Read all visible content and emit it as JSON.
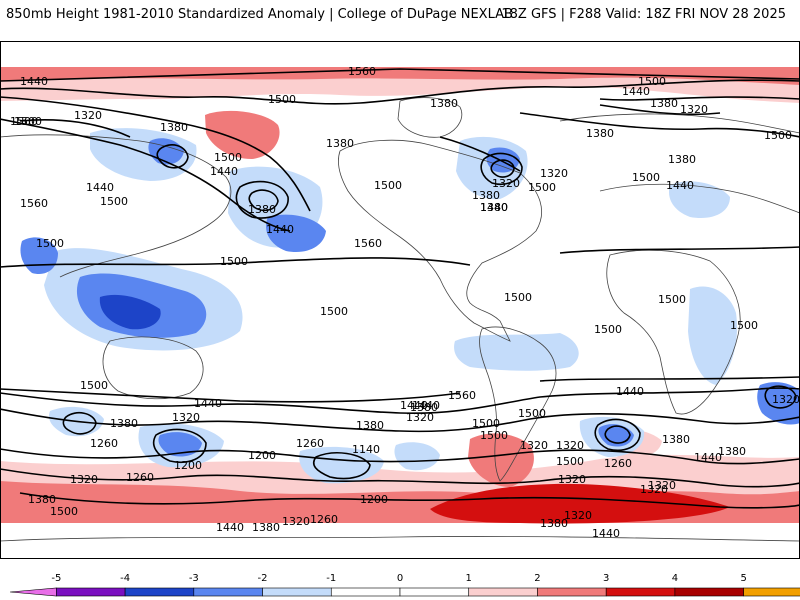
{
  "header": {
    "left": "850mb Height 1981-2010 Standardized Anomaly | College of DuPage NEXLAB",
    "right": "18Z GFS | F288 Valid: 18Z FRI NOV 28 2025"
  },
  "colors": {
    "neg5": "#e86ee8",
    "neg4": "#7a0fc0",
    "neg3": "#1d44c8",
    "neg2": "#5a86f0",
    "neg1": "#c4dcfa",
    "neutral": "#ffffff",
    "pos1": "#fbcfcf",
    "pos2": "#f07a7a",
    "pos3": "#d40f0f",
    "pos4": "#a80000",
    "pos5": "#f2a000",
    "land": "#d9d9d9",
    "contour": "#000000"
  },
  "contour_labels": [
    {
      "text": "1560"
    },
    {
      "text": "1500"
    },
    {
      "text": "1440"
    },
    {
      "text": "1500"
    },
    {
      "text": "1440"
    },
    {
      "text": "1380"
    },
    {
      "text": "1320"
    },
    {
      "text": "1500"
    },
    {
      "text": "1500"
    },
    {
      "text": "1380"
    },
    {
      "text": "1320"
    },
    {
      "text": "1380"
    },
    {
      "text": "1500"
    },
    {
      "text": "1440"
    },
    {
      "text": "1380"
    },
    {
      "text": "1440"
    },
    {
      "text": "1500"
    },
    {
      "text": "1560"
    },
    {
      "text": "1500"
    },
    {
      "text": "1380"
    },
    {
      "text": "1440"
    },
    {
      "text": "1500"
    },
    {
      "text": "1560"
    },
    {
      "text": "1500"
    },
    {
      "text": "1500"
    },
    {
      "text": "1380"
    },
    {
      "text": "1320"
    },
    {
      "text": "1500"
    },
    {
      "text": "1380"
    },
    {
      "text": "1440"
    },
    {
      "text": "1320"
    },
    {
      "text": "1500"
    },
    {
      "text": "1380"
    },
    {
      "text": "1440"
    },
    {
      "text": "1500"
    },
    {
      "text": "1500"
    },
    {
      "text": "1500"
    },
    {
      "text": "1500"
    },
    {
      "text": "1500"
    },
    {
      "text": "1440"
    },
    {
      "text": "1380"
    },
    {
      "text": "1320"
    },
    {
      "text": "1260"
    },
    {
      "text": "1200"
    },
    {
      "text": "1260"
    },
    {
      "text": "1200"
    },
    {
      "text": "1140"
    },
    {
      "text": "1260"
    },
    {
      "text": "1200"
    },
    {
      "text": "1380"
    },
    {
      "text": "1320"
    },
    {
      "text": "1440"
    },
    {
      "text": "1320"
    },
    {
      "text": "1500"
    },
    {
      "text": "1560"
    },
    {
      "text": "1500"
    },
    {
      "text": "1320"
    },
    {
      "text": "1260"
    },
    {
      "text": "1380"
    },
    {
      "text": "1320"
    },
    {
      "text": "1500"
    },
    {
      "text": "1440"
    },
    {
      "text": "1320"
    },
    {
      "text": "1380"
    },
    {
      "text": "1380"
    },
    {
      "text": "1320"
    },
    {
      "text": "1260"
    },
    {
      "text": "1320"
    },
    {
      "text": "1440"
    },
    {
      "text": "1380"
    },
    {
      "text": "1500"
    },
    {
      "text": "1380"
    },
    {
      "text": "1500"
    },
    {
      "text": "1440"
    },
    {
      "text": "1320"
    },
    {
      "text": "1380"
    },
    {
      "text": "1440"
    },
    {
      "text": "1500"
    },
    {
      "text": "1320"
    },
    {
      "text": "1380"
    },
    {
      "text": "1320"
    },
    {
      "text": "1440"
    }
  ],
  "colorbar": {
    "ticks": [
      "-5",
      "-4",
      "-3",
      "-2",
      "-1",
      "0",
      "1",
      "2",
      "3",
      "4",
      "5"
    ]
  }
}
